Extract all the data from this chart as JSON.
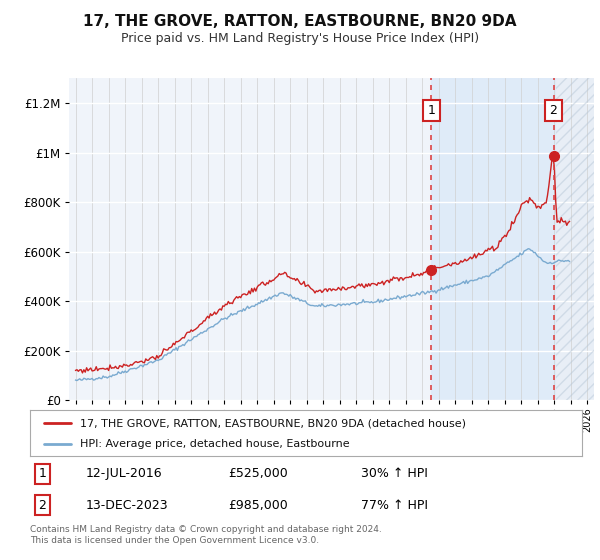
{
  "title": "17, THE GROVE, RATTON, EASTBOURNE, BN20 9DA",
  "subtitle": "Price paid vs. HM Land Registry's House Price Index (HPI)",
  "ylim": [
    0,
    1300000
  ],
  "yticks": [
    0,
    200000,
    400000,
    600000,
    800000,
    1000000,
    1200000
  ],
  "property_color": "#cc2222",
  "hpi_color": "#7aaad0",
  "event1_x": 2016.54,
  "event1_y": 525000,
  "event2_x": 2023.95,
  "event2_y": 985000,
  "legend_property": "17, THE GROVE, RATTON, EASTBOURNE, BN20 9DA (detached house)",
  "legend_hpi": "HPI: Average price, detached house, Eastbourne",
  "event1_date": "12-JUL-2016",
  "event1_price": "£525,000",
  "event1_hpi": "30% ↑ HPI",
  "event2_date": "13-DEC-2023",
  "event2_price": "£985,000",
  "event2_hpi": "77% ↑ HPI",
  "footer": "Contains HM Land Registry data © Crown copyright and database right 2024.\nThis data is licensed under the Open Government Licence v3.0.",
  "xmin": 1994.6,
  "xmax": 2026.4,
  "hatch_start": 2024.08,
  "hatch_end": 2026.4,
  "shade_start": 2016.54,
  "shade_end": 2024.08
}
